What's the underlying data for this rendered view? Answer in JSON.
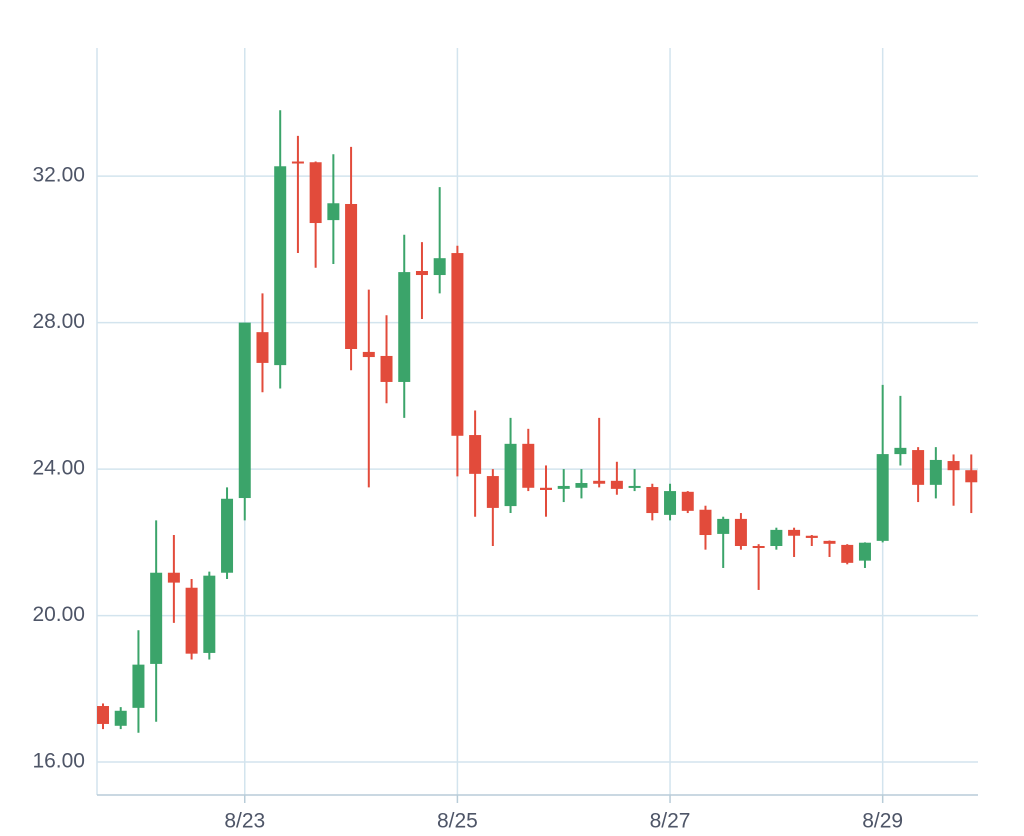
{
  "chart_data": {
    "type": "candlestick",
    "categories": [
      null,
      null,
      null,
      null,
      null,
      null,
      null,
      null,
      "8/23",
      null,
      null,
      null,
      null,
      null,
      null,
      null,
      null,
      null,
      null,
      null,
      "8/25",
      null,
      null,
      null,
      null,
      null,
      null,
      null,
      null,
      null,
      null,
      null,
      "8/27",
      null,
      null,
      null,
      null,
      null,
      null,
      null,
      null,
      null,
      null,
      null,
      "8/29",
      null,
      null,
      null,
      null,
      null
    ],
    "open": [
      17.53,
      16.99,
      17.48,
      18.68,
      21.17,
      20.76,
      18.98,
      21.17,
      23.21,
      27.74,
      26.84,
      32.4,
      32.38,
      30.8,
      31.24,
      27.2,
      27.09,
      26.38,
      29.41,
      29.3,
      29.9,
      24.93,
      23.81,
      22.99,
      24.69,
      23.49,
      23.46,
      23.49,
      23.68,
      23.68,
      23.49,
      23.51,
      22.75,
      23.38,
      22.89,
      22.23,
      22.64,
      21.9,
      21.9,
      22.34,
      22.18,
      22.04,
      21.93,
      21.5,
      22.04,
      24.41,
      24.52,
      23.57,
      24.22,
      23.97
    ],
    "high": [
      17.6,
      17.5,
      19.6,
      22.6,
      22.2,
      21.0,
      21.2,
      23.5,
      28.0,
      28.8,
      33.8,
      33.1,
      32.4,
      32.6,
      32.8,
      28.9,
      28.2,
      30.4,
      30.2,
      31.7,
      30.1,
      25.6,
      24.0,
      25.4,
      25.1,
      24.1,
      24.0,
      24.0,
      25.4,
      24.2,
      24.0,
      23.6,
      23.6,
      23.4,
      23.0,
      22.7,
      22.8,
      21.95,
      22.4,
      22.4,
      22.2,
      22.05,
      21.95,
      22.0,
      26.3,
      26.0,
      24.6,
      24.6,
      24.4,
      24.4
    ],
    "low": [
      16.9,
      16.9,
      16.8,
      17.1,
      19.8,
      18.8,
      18.8,
      21.0,
      22.6,
      26.1,
      26.2,
      29.9,
      29.5,
      29.6,
      26.7,
      23.5,
      25.8,
      25.4,
      28.1,
      28.8,
      23.8,
      22.7,
      21.9,
      22.8,
      23.4,
      22.7,
      23.1,
      23.2,
      23.5,
      23.3,
      23.4,
      22.6,
      22.6,
      22.8,
      21.8,
      21.3,
      21.8,
      20.7,
      21.8,
      21.6,
      21.9,
      21.6,
      21.4,
      21.3,
      22.0,
      24.1,
      23.1,
      23.2,
      23.0,
      22.8
    ],
    "close": [
      17.04,
      17.4,
      18.66,
      21.17,
      20.9,
      18.96,
      21.09,
      23.19,
      28.0,
      26.9,
      32.27,
      32.35,
      30.72,
      31.26,
      27.28,
      27.06,
      26.38,
      29.38,
      29.3,
      29.76,
      24.91,
      23.87,
      22.94,
      24.69,
      23.49,
      23.43,
      23.54,
      23.62,
      23.6,
      23.46,
      23.54,
      22.8,
      23.4,
      22.86,
      22.2,
      22.64,
      21.9,
      21.88,
      22.34,
      22.18,
      22.12,
      21.96,
      21.44,
      21.99,
      24.41,
      24.58,
      23.57,
      24.25,
      23.97,
      23.64
    ],
    "up_color": "#3ba46a",
    "down_color": "#e24b3b",
    "ylim": [
      15.1,
      35.5
    ],
    "yticks": [
      {
        "value": 16,
        "label": "16.00"
      },
      {
        "value": 20,
        "label": "20.00"
      },
      {
        "value": 24,
        "label": "24.00"
      },
      {
        "value": 28,
        "label": "28.00"
      },
      {
        "value": 32,
        "label": "32.00"
      }
    ],
    "grid": true
  }
}
